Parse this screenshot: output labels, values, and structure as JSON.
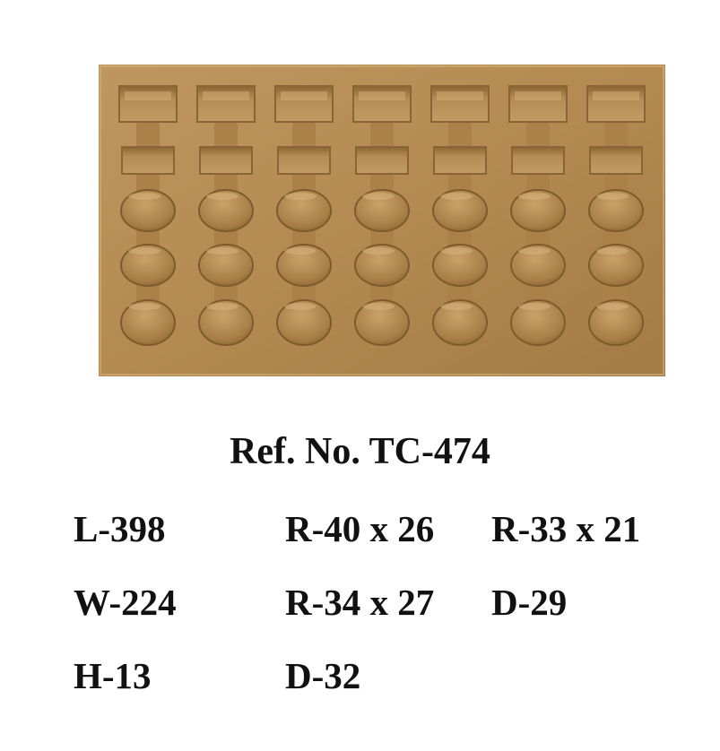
{
  "product_photo": {
    "description_icon": "gold-blister-tray",
    "tray_color": "#b48a52",
    "columns": 7,
    "rows": [
      "rect-slot",
      "rect-slot-small",
      "round-cavity",
      "round-cavity",
      "round-cavity"
    ]
  },
  "ref_number": "Ref. No. TC-474",
  "specs": {
    "length": "L-398",
    "width": "W-224",
    "height": "H-13",
    "r_40x26": "R-40 x 26",
    "r_34x27": "R-34 x 27",
    "d_32": "D-32",
    "r_33x21": "R-33 x 21",
    "d_29": "D-29"
  }
}
